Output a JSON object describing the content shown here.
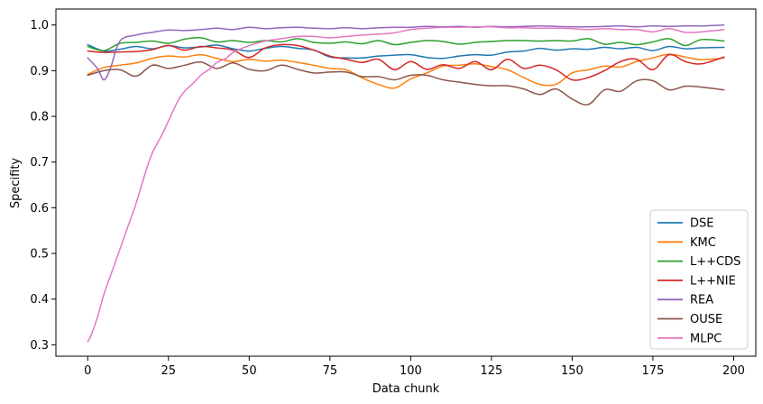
{
  "chart_data": {
    "type": "line",
    "xlabel": "Data chunk",
    "ylabel": "Specifity",
    "xlim": [
      -9.85,
      206.85
    ],
    "ylim": [
      0.275,
      1.035
    ],
    "xticks": [
      0,
      25,
      50,
      75,
      100,
      125,
      150,
      175,
      200
    ],
    "xtick_labels": [
      "0",
      "25",
      "50",
      "75",
      "100",
      "125",
      "150",
      "175",
      "200"
    ],
    "yticks": [
      0.3,
      0.4,
      0.5,
      0.6,
      0.7,
      0.8,
      0.9,
      1.0
    ],
    "ytick_labels": [
      "0.3",
      "0.4",
      "0.5",
      "0.6",
      "0.7",
      "0.8",
      "0.9",
      "1.0"
    ],
    "grid": false,
    "legend_position": "lower-right",
    "series": [
      {
        "name": "DSE",
        "color": "#1f77b4",
        "x": [
          0,
          5,
          10,
          15,
          20,
          25,
          30,
          35,
          40,
          45,
          50,
          55,
          60,
          65,
          70,
          75,
          80,
          85,
          90,
          95,
          100,
          105,
          110,
          115,
          120,
          125,
          130,
          135,
          140,
          145,
          150,
          155,
          160,
          165,
          170,
          175,
          180,
          185,
          190,
          197
        ],
        "y": [
          0.957,
          0.943,
          0.947,
          0.953,
          0.948,
          0.955,
          0.95,
          0.952,
          0.956,
          0.948,
          0.943,
          0.949,
          0.953,
          0.949,
          0.945,
          0.93,
          0.928,
          0.928,
          0.932,
          0.934,
          0.935,
          0.929,
          0.927,
          0.932,
          0.935,
          0.934,
          0.941,
          0.943,
          0.949,
          0.945,
          0.948,
          0.947,
          0.951,
          0.948,
          0.951,
          0.944,
          0.953,
          0.948,
          0.95,
          0.951
        ]
      },
      {
        "name": "KMC",
        "color": "#ff7f0e",
        "x": [
          0,
          5,
          10,
          15,
          20,
          25,
          30,
          35,
          40,
          45,
          50,
          55,
          60,
          65,
          70,
          75,
          80,
          85,
          90,
          95,
          100,
          105,
          110,
          115,
          120,
          125,
          130,
          135,
          140,
          145,
          150,
          155,
          160,
          165,
          170,
          175,
          180,
          185,
          190,
          197
        ],
        "y": [
          0.892,
          0.907,
          0.912,
          0.917,
          0.927,
          0.932,
          0.93,
          0.935,
          0.927,
          0.92,
          0.925,
          0.921,
          0.923,
          0.918,
          0.912,
          0.905,
          0.902,
          0.884,
          0.87,
          0.862,
          0.882,
          0.895,
          0.91,
          0.912,
          0.915,
          0.909,
          0.902,
          0.885,
          0.87,
          0.87,
          0.895,
          0.902,
          0.91,
          0.908,
          0.92,
          0.928,
          0.936,
          0.93,
          0.924,
          0.928
        ]
      },
      {
        "name": "L++CDS",
        "color": "#2ca02c",
        "x": [
          0,
          5,
          10,
          15,
          20,
          25,
          30,
          35,
          40,
          45,
          50,
          55,
          60,
          65,
          70,
          75,
          80,
          85,
          90,
          95,
          100,
          105,
          110,
          115,
          120,
          125,
          130,
          135,
          140,
          145,
          150,
          155,
          160,
          165,
          170,
          175,
          180,
          185,
          190,
          197
        ],
        "y": [
          0.953,
          0.944,
          0.96,
          0.962,
          0.965,
          0.96,
          0.969,
          0.972,
          0.963,
          0.966,
          0.962,
          0.966,
          0.963,
          0.97,
          0.962,
          0.96,
          0.963,
          0.959,
          0.966,
          0.957,
          0.962,
          0.966,
          0.964,
          0.958,
          0.962,
          0.964,
          0.966,
          0.966,
          0.965,
          0.966,
          0.965,
          0.97,
          0.958,
          0.962,
          0.957,
          0.963,
          0.97,
          0.955,
          0.968,
          0.965
        ]
      },
      {
        "name": "L++NIE",
        "color": "#d62728",
        "x": [
          0,
          5,
          10,
          15,
          20,
          25,
          30,
          35,
          40,
          45,
          50,
          55,
          60,
          65,
          70,
          75,
          80,
          85,
          90,
          95,
          100,
          105,
          110,
          115,
          120,
          125,
          130,
          135,
          140,
          145,
          150,
          155,
          160,
          165,
          170,
          175,
          180,
          185,
          190,
          197
        ],
        "y": [
          0.943,
          0.94,
          0.941,
          0.942,
          0.946,
          0.955,
          0.945,
          0.953,
          0.95,
          0.945,
          0.929,
          0.95,
          0.957,
          0.955,
          0.945,
          0.932,
          0.925,
          0.918,
          0.925,
          0.902,
          0.92,
          0.903,
          0.913,
          0.905,
          0.92,
          0.902,
          0.925,
          0.905,
          0.912,
          0.902,
          0.88,
          0.885,
          0.9,
          0.92,
          0.925,
          0.902,
          0.935,
          0.92,
          0.915,
          0.93
        ]
      },
      {
        "name": "REA",
        "color": "#9467bd",
        "x": [
          0,
          3,
          5,
          7,
          10,
          15,
          20,
          25,
          30,
          35,
          40,
          45,
          50,
          55,
          60,
          65,
          70,
          75,
          80,
          85,
          90,
          95,
          100,
          105,
          110,
          115,
          120,
          125,
          130,
          135,
          140,
          145,
          150,
          155,
          160,
          165,
          170,
          175,
          180,
          185,
          190,
          197
        ],
        "y": [
          0.928,
          0.905,
          0.88,
          0.905,
          0.965,
          0.978,
          0.984,
          0.989,
          0.988,
          0.99,
          0.993,
          0.99,
          0.995,
          0.992,
          0.994,
          0.995,
          0.993,
          0.992,
          0.994,
          0.992,
          0.994,
          0.995,
          0.995,
          0.997,
          0.996,
          0.997,
          0.995,
          0.997,
          0.996,
          0.997,
          0.998,
          0.997,
          0.996,
          0.996,
          0.997,
          0.998,
          0.996,
          0.998,
          0.997,
          0.998,
          0.998,
          1.0
        ]
      },
      {
        "name": "OUSE",
        "color": "#8c564b",
        "x": [
          0,
          5,
          10,
          15,
          20,
          25,
          30,
          35,
          40,
          45,
          50,
          55,
          60,
          65,
          70,
          75,
          80,
          85,
          90,
          95,
          100,
          105,
          110,
          115,
          120,
          125,
          130,
          135,
          140,
          145,
          150,
          155,
          160,
          165,
          170,
          175,
          180,
          185,
          190,
          197
        ],
        "y": [
          0.89,
          0.9,
          0.902,
          0.888,
          0.912,
          0.905,
          0.912,
          0.919,
          0.905,
          0.917,
          0.903,
          0.9,
          0.912,
          0.903,
          0.895,
          0.897,
          0.897,
          0.887,
          0.887,
          0.88,
          0.89,
          0.89,
          0.88,
          0.875,
          0.87,
          0.867,
          0.867,
          0.86,
          0.848,
          0.86,
          0.838,
          0.826,
          0.858,
          0.855,
          0.878,
          0.878,
          0.858,
          0.866,
          0.864,
          0.858
        ]
      },
      {
        "name": "MLPC",
        "color": "#e377c2",
        "x": [
          0,
          1,
          3,
          5,
          8,
          10,
          13,
          15,
          18,
          20,
          23,
          25,
          28,
          30,
          33,
          35,
          38,
          40,
          43,
          45,
          50,
          55,
          60,
          65,
          70,
          75,
          80,
          85,
          90,
          95,
          100,
          105,
          110,
          115,
          120,
          125,
          130,
          135,
          140,
          145,
          150,
          155,
          160,
          165,
          170,
          175,
          180,
          185,
          190,
          197
        ],
        "y": [
          0.307,
          0.32,
          0.36,
          0.41,
          0.47,
          0.51,
          0.57,
          0.61,
          0.68,
          0.72,
          0.76,
          0.79,
          0.835,
          0.855,
          0.875,
          0.89,
          0.905,
          0.918,
          0.928,
          0.94,
          0.955,
          0.965,
          0.97,
          0.975,
          0.975,
          0.972,
          0.975,
          0.978,
          0.98,
          0.983,
          0.99,
          0.993,
          0.995,
          0.995,
          0.996,
          0.996,
          0.994,
          0.994,
          0.993,
          0.993,
          0.992,
          0.99,
          0.992,
          0.99,
          0.99,
          0.985,
          0.992,
          0.984,
          0.985,
          0.99
        ]
      }
    ]
  }
}
